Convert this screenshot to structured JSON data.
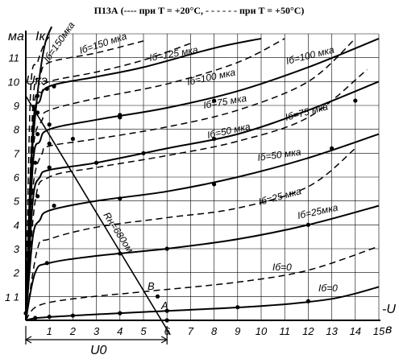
{
  "chart_data": {
    "type": "line",
    "title": "П13А (---- при T = +20°C,  - - - - - - при T = +50°C)",
    "y_unit": "ма",
    "y_axis_label": "Iк",
    "x_axis_label": "-U",
    "x_unit": "в",
    "extra_labels": {
      "uke": "Uкэ",
      "u0": "U0",
      "load_line": "Rн=680ом",
      "point_a": "A",
      "point_b": "B",
      "one_marker": "1"
    },
    "xlim": [
      0,
      15
    ],
    "ylim": [
      0,
      12
    ],
    "x_ticks": [
      "1",
      "2",
      "3",
      "4",
      "5",
      "6",
      "7",
      "8",
      "9",
      "10",
      "11",
      "12",
      "13",
      "14",
      "15"
    ],
    "y_ticks": [
      "1",
      "2",
      "3",
      "4",
      "5",
      "6",
      "7",
      "8",
      "9",
      "10",
      "11"
    ],
    "series": [
      {
        "name": "Iб=0",
        "style": "solid",
        "points": [
          [
            0,
            0
          ],
          [
            0.5,
            0.1
          ],
          [
            2,
            0.2
          ],
          [
            5,
            0.35
          ],
          [
            10,
            0.6
          ],
          [
            13,
            0.9
          ],
          [
            15,
            1.4
          ]
        ]
      },
      {
        "name": "Iб=0",
        "style": "dashed",
        "points": [
          [
            0,
            0
          ],
          [
            0.5,
            0.6
          ],
          [
            2,
            0.9
          ],
          [
            5,
            1.2
          ],
          [
            9,
            1.6
          ],
          [
            12,
            2.1
          ],
          [
            15,
            3.1
          ]
        ]
      },
      {
        "name": "Iб=25мка",
        "style": "solid",
        "points": [
          [
            0,
            0
          ],
          [
            0.4,
            2.0
          ],
          [
            1,
            2.4
          ],
          [
            3,
            2.7
          ],
          [
            6,
            3.0
          ],
          [
            9,
            3.4
          ],
          [
            12,
            4.0
          ],
          [
            15,
            4.8
          ]
        ]
      },
      {
        "name": "Iб=25 мка",
        "style": "dashed",
        "points": [
          [
            0,
            0
          ],
          [
            0.5,
            3.0
          ],
          [
            1,
            3.4
          ],
          [
            3,
            3.9
          ],
          [
            6,
            4.3
          ],
          [
            9,
            4.7
          ],
          [
            12,
            5.6
          ],
          [
            14,
            7.2
          ]
        ]
      },
      {
        "name": "Iб=50 мка",
        "style": "solid",
        "points": [
          [
            0,
            0
          ],
          [
            0.3,
            3.5
          ],
          [
            0.6,
            4.2
          ],
          [
            1,
            4.6
          ],
          [
            3,
            5.0
          ],
          [
            6,
            5.4
          ],
          [
            9,
            6.0
          ],
          [
            12,
            6.8
          ],
          [
            15,
            7.8
          ]
        ]
      },
      {
        "name": "",
        "style": "dashed",
        "points": [
          [
            0,
            0
          ],
          [
            0.4,
            5.0
          ],
          [
            1,
            6.0
          ],
          [
            3,
            6.4
          ],
          [
            6,
            6.9
          ],
          [
            9,
            7.5
          ],
          [
            12,
            8.5
          ],
          [
            14.5,
            10.5
          ]
        ]
      },
      {
        "name": "Iб=75 мка",
        "style": "solid",
        "points": [
          [
            0,
            0
          ],
          [
            0.3,
            5.0
          ],
          [
            0.6,
            6.0
          ],
          [
            1,
            6.3
          ],
          [
            3,
            6.6
          ],
          [
            6,
            7.2
          ],
          [
            9,
            7.8
          ],
          [
            12,
            8.8
          ],
          [
            15,
            10.0
          ]
        ]
      },
      {
        "name": "Iб=50 мка",
        "style": "dashed",
        "points": [
          [
            0,
            0
          ],
          [
            0.3,
            5.5
          ],
          [
            0.7,
            7.0
          ],
          [
            1,
            7.3
          ],
          [
            3,
            7.6
          ],
          [
            6,
            8.1
          ],
          [
            9,
            8.8
          ],
          [
            12,
            10.0
          ],
          [
            14,
            11.8
          ]
        ]
      },
      {
        "name": "Iб=100 мка",
        "style": "solid",
        "points": [
          [
            0,
            0
          ],
          [
            0.3,
            6.5
          ],
          [
            0.6,
            7.5
          ],
          [
            1,
            8.0
          ],
          [
            3,
            8.4
          ],
          [
            6,
            8.9
          ],
          [
            9,
            9.6
          ],
          [
            12,
            10.6
          ],
          [
            15,
            11.8
          ]
        ]
      },
      {
        "name": "Iб=75 мка",
        "style": "dashed",
        "points": [
          [
            0,
            0
          ],
          [
            0.3,
            7.0
          ],
          [
            0.7,
            8.4
          ],
          [
            1,
            8.8
          ],
          [
            3,
            9.3
          ],
          [
            6,
            9.9
          ],
          [
            9,
            10.8
          ],
          [
            11,
            11.8
          ]
        ]
      },
      {
        "name": "Iб=150 мка",
        "style": "solid",
        "points": [
          [
            0,
            0
          ],
          [
            0.3,
            8.0
          ],
          [
            0.6,
            9.2
          ],
          [
            1,
            9.8
          ],
          [
            3,
            10.2
          ],
          [
            5,
            10.6
          ],
          [
            8,
            11.4
          ],
          [
            10,
            11.8
          ]
        ]
      },
      {
        "name": "Iб=100 мка",
        "style": "dashed",
        "points": [
          [
            0,
            0
          ],
          [
            0.3,
            8.5
          ],
          [
            0.7,
            9.6
          ],
          [
            1,
            10.0
          ],
          [
            3,
            10.4
          ],
          [
            5,
            10.9
          ],
          [
            7,
            11.6
          ]
        ]
      },
      {
        "name": "Iб=125 мка",
        "style": "dashed",
        "points": [
          [
            0,
            0
          ],
          [
            0.3,
            9.0
          ],
          [
            0.6,
            10.2
          ],
          [
            1,
            10.8
          ],
          [
            3,
            11.2
          ],
          [
            5,
            11.7
          ]
        ]
      },
      {
        "name": "Iб=150мка",
        "style": "dashed",
        "points": [
          [
            0,
            0
          ],
          [
            0.2,
            9.5
          ],
          [
            0.5,
            10.8
          ],
          [
            0.8,
            11.6
          ],
          [
            1.1,
            12.0
          ]
        ]
      },
      {
        "name": "Uкэ",
        "style": "solid",
        "points": [
          [
            0,
            0
          ],
          [
            0.2,
            6.0
          ],
          [
            0.5,
            9.5
          ],
          [
            0.8,
            11.5
          ],
          [
            1.1,
            12.3
          ]
        ]
      }
    ],
    "load_line": {
      "style": "solid",
      "points": [
        [
          0,
          9.4
        ],
        [
          6,
          0
        ]
      ]
    },
    "marked_points": [
      [
        0.4,
        0.1
      ],
      [
        1,
        0.15
      ],
      [
        2,
        0.2
      ],
      [
        4,
        0.3
      ],
      [
        6,
        0.4
      ],
      [
        9,
        0.55
      ],
      [
        12,
        0.8
      ],
      [
        0.9,
        2.4
      ],
      [
        4,
        2.8
      ],
      [
        6,
        3.0
      ],
      [
        12,
        4.0
      ],
      [
        1.2,
        4.8
      ],
      [
        4,
        5.1
      ],
      [
        8,
        5.7
      ],
      [
        13,
        7.2
      ],
      [
        0.5,
        5.2
      ],
      [
        1,
        6.4
      ],
      [
        3,
        6.6
      ],
      [
        5,
        7.0
      ],
      [
        8,
        7.6
      ],
      [
        0.4,
        6.6
      ],
      [
        1,
        7.4
      ],
      [
        2,
        7.6
      ],
      [
        4,
        8.5
      ],
      [
        0.5,
        7.8
      ],
      [
        1,
        8.2
      ],
      [
        4,
        8.6
      ],
      [
        8,
        9.2
      ],
      [
        14,
        9.2
      ],
      [
        0.5,
        8.7
      ],
      [
        1.2,
        9.8
      ],
      [
        0.5,
        9.4
      ],
      [
        0.9,
        9.7
      ],
      [
        0,
        0.3
      ],
      [
        5.6,
        1.0
      ],
      [
        6,
        0
      ]
    ]
  }
}
